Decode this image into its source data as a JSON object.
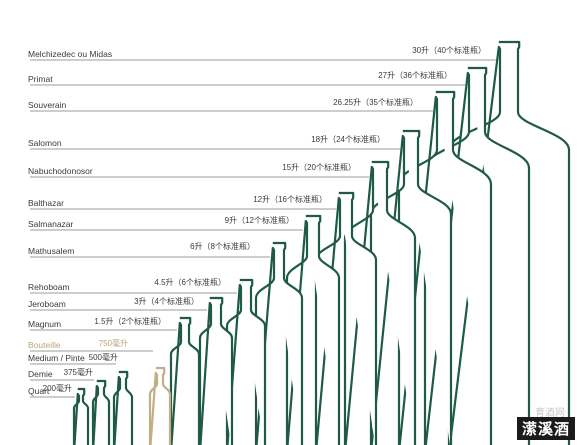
{
  "bottles": [
    {
      "name": "Melchizedec ou Midas",
      "volume": "30升（40个标准瓶）"
    },
    {
      "name": "Primat",
      "volume": "27升（36个标准瓶）"
    },
    {
      "name": "Souverain",
      "volume": "26.25升（35个标准瓶）"
    },
    {
      "name": "Salomon",
      "volume": "18升（24个标准瓶）"
    },
    {
      "name": "Nabuchodonosor",
      "volume": "15升（20个标准瓶）"
    },
    {
      "name": "Balthazar",
      "volume": "12升（16个标准瓶）"
    },
    {
      "name": "Salmanazar",
      "volume": "9升（12个标准瓶）"
    },
    {
      "name": "Mathusalem",
      "volume": "6升（8个标准瓶）"
    },
    {
      "name": "Rehoboam",
      "volume": "4.5升（6个标准瓶）"
    },
    {
      "name": "Jeroboam",
      "volume": "3升（4个标准瓶）"
    },
    {
      "name": "Magnum",
      "volume": "1.5升（2个标准瓶）"
    },
    {
      "name": "Bouteille",
      "volume": "750毫升"
    },
    {
      "name": "Medium / Pinte",
      "volume": "500毫升"
    },
    {
      "name": "Demie",
      "volume": "375毫升"
    },
    {
      "name": "Quart",
      "volume": "200毫升"
    }
  ],
  "watermark": {
    "site": "育酒网",
    "brand": "潆溪酒"
  },
  "colors": {
    "bottle_outline": "#1e5a45",
    "standard_bottle": "#c1ae86",
    "text": "#3a3a3a"
  }
}
